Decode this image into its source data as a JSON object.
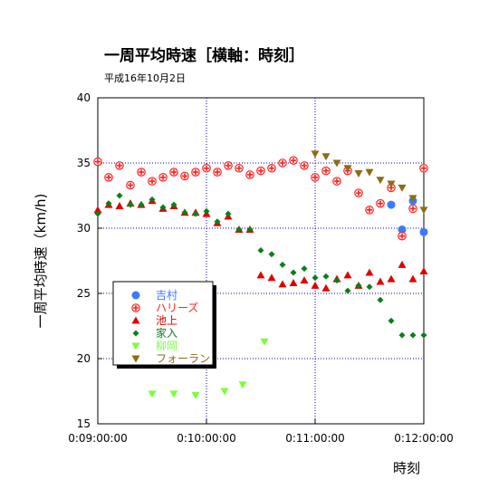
{
  "chart_data": {
    "type": "scatter",
    "title": "一周平均時速［横軸：時刻］",
    "subtitle": "平成16年10月2日",
    "xlabel": "時刻",
    "ylabel": "一周平均時速（km/h)",
    "xlim": [
      "0:09:00:00",
      "0:12:00:00"
    ],
    "ylim": [
      15,
      40
    ],
    "xticks": [
      "0:09:00:00",
      "0:10:00:00",
      "0:11:00:00",
      "0:12:00:00"
    ],
    "yticks": [
      15,
      20,
      25,
      30,
      35,
      40
    ],
    "grid": true,
    "legend_position": "lower-left",
    "series": [
      {
        "name": "吉村",
        "color": "#3a7bff",
        "marker": "circle",
        "x": [
          "0:09:00:00",
          "0:09:06:00",
          "0:09:12:00",
          "0:09:18:00",
          "0:09:24:00",
          "0:09:30:00",
          "0:09:36:00",
          "0:09:42:00",
          "0:09:48:00",
          "0:09:54:00",
          "0:10:00:00",
          "0:10:06:00",
          "0:10:12:00",
          "0:10:18:00",
          "0:10:24:00",
          "0:10:30:00",
          "0:10:36:00",
          "0:10:42:00",
          "0:10:48:00",
          "0:10:54:00",
          "0:10:60:00",
          "0:11:06:00",
          "0:11:12:00",
          "0:11:18:00",
          "0:11:24:00",
          "0:11:30:00",
          "0:11:36:00",
          "0:11:42:00",
          "0:11:48:00",
          "0:11:54:00",
          "0:12:00:00"
        ],
        "y": [
          35.1,
          33.9,
          34.8,
          33.3,
          34.3,
          33.6,
          33.9,
          34.3,
          34.0,
          34.3,
          34.6,
          34.3,
          34.8,
          34.6,
          34.1,
          34.4,
          34.6,
          35.0,
          35.2,
          34.8,
          33.9,
          34.4,
          33.6,
          34.4,
          32.7,
          31.4,
          31.9,
          31.8,
          29.9,
          32.1,
          29.7
        ]
      },
      {
        "name": "ハリーズ",
        "color": "#ff2020",
        "marker": "cross",
        "x": [
          "0:09:00:00",
          "0:09:06:00",
          "0:09:12:00",
          "0:09:18:00",
          "0:09:24:00",
          "0:09:30:00",
          "0:09:36:00",
          "0:09:42:00",
          "0:09:48:00",
          "0:09:54:00",
          "0:10:00:00",
          "0:10:06:00",
          "0:10:12:00",
          "0:10:18:00",
          "0:10:24:00",
          "0:10:30:00",
          "0:10:36:00",
          "0:10:42:00",
          "0:10:48:00",
          "0:10:54:00",
          "0:11:00:00",
          "0:11:06:00",
          "0:11:12:00",
          "0:11:18:00",
          "0:11:24:00",
          "0:11:30:00",
          "0:11:36:00",
          "0:11:42:00",
          "0:11:48:00",
          "0:11:54:00",
          "0:12:00:00"
        ],
        "y": [
          35.1,
          33.9,
          34.8,
          33.3,
          34.3,
          33.6,
          33.9,
          34.3,
          34.0,
          34.3,
          34.6,
          34.3,
          34.8,
          34.6,
          34.1,
          34.4,
          34.6,
          35.0,
          35.2,
          34.8,
          33.9,
          34.4,
          33.6,
          34.4,
          32.7,
          31.4,
          31.9,
          33.1,
          29.4,
          31.5,
          34.6
        ]
      },
      {
        "name": "池上",
        "color": "#e00000",
        "marker": "triangle-up",
        "x": [
          "0:09:00:00",
          "0:09:06:00",
          "0:09:12:00",
          "0:09:18:00",
          "0:09:24:00",
          "0:09:30:00",
          "0:09:36:00",
          "0:09:42:00",
          "0:09:48:00",
          "0:09:54:00",
          "0:10:00:00",
          "0:10:06:00",
          "0:10:12:00",
          "0:10:18:00",
          "0:10:24:00",
          "0:10:30:00",
          "0:10:36:00",
          "0:10:42:00",
          "0:10:48:00",
          "0:10:54:00",
          "0:11:00:00",
          "0:11:06:00",
          "0:11:12:00",
          "0:11:18:00",
          "0:11:24:00",
          "0:11:30:00",
          "0:11:36:00",
          "0:11:42:00",
          "0:11:48:00",
          "0:11:54:00",
          "0:12:00:00"
        ],
        "y": [
          31.4,
          31.8,
          31.7,
          31.9,
          31.8,
          32.1,
          31.5,
          31.7,
          31.2,
          31.2,
          31.1,
          30.4,
          30.9,
          29.9,
          29.9,
          26.4,
          26.2,
          25.7,
          25.8,
          26.0,
          25.6,
          25.4,
          26.1,
          26.4,
          25.6,
          26.6,
          25.9,
          26.1,
          27.2,
          26.1,
          26.7
        ]
      },
      {
        "name": "家入",
        "color": "#0a7f1a",
        "marker": "diamond",
        "x": [
          "0:09:00:00",
          "0:09:06:00",
          "0:09:12:00",
          "0:09:18:00",
          "0:09:24:00",
          "0:09:30:00",
          "0:09:36:00",
          "0:09:42:00",
          "0:09:48:00",
          "0:09:54:00",
          "0:10:00:00",
          "0:10:06:00",
          "0:10:12:00",
          "0:10:18:00",
          "0:10:24:00",
          "0:10:30:00",
          "0:10:36:00",
          "0:10:42:00",
          "0:10:48:00",
          "0:10:54:00",
          "0:11:00:00",
          "0:11:06:00",
          "0:11:12:00",
          "0:11:18:00",
          "0:11:24:00",
          "0:11:30:00",
          "0:11:36:00",
          "0:11:42:00",
          "0:11:48:00",
          "0:11:54:00",
          "0:12:00:00"
        ],
        "y": [
          31.1,
          31.9,
          32.5,
          31.8,
          31.8,
          32.2,
          31.6,
          31.8,
          31.2,
          31.1,
          31.3,
          30.5,
          31.1,
          29.9,
          29.9,
          28.3,
          28.0,
          27.2,
          26.6,
          26.9,
          26.2,
          26.3,
          26.0,
          25.2,
          25.6,
          25.5,
          24.5,
          22.9,
          21.8,
          21.8,
          21.8
        ]
      },
      {
        "name": "柳岡",
        "color": "#7cfc3f",
        "marker": "triangle-down",
        "x": [
          "0:09:30:00",
          "0:09:42:00",
          "0:09:54:00",
          "0:10:10:00",
          "0:10:20:00",
          "0:10:32:00"
        ],
        "y": [
          17.3,
          17.3,
          17.2,
          17.5,
          18.0,
          21.3
        ]
      },
      {
        "name": "フォーラン",
        "color": "#8a6d14",
        "marker": "triangle-down",
        "x": [
          "0:11:00:00",
          "0:11:06:00",
          "0:11:12:00",
          "0:11:18:00",
          "0:11:24:00",
          "0:11:30:00",
          "0:11:36:00",
          "0:11:42:00",
          "0:11:48:00",
          "0:11:54:00",
          "0:12:00:00"
        ],
        "y": [
          35.7,
          35.5,
          35.0,
          34.6,
          34.2,
          34.3,
          33.7,
          33.4,
          33.1,
          32.3,
          31.4
        ]
      }
    ]
  }
}
